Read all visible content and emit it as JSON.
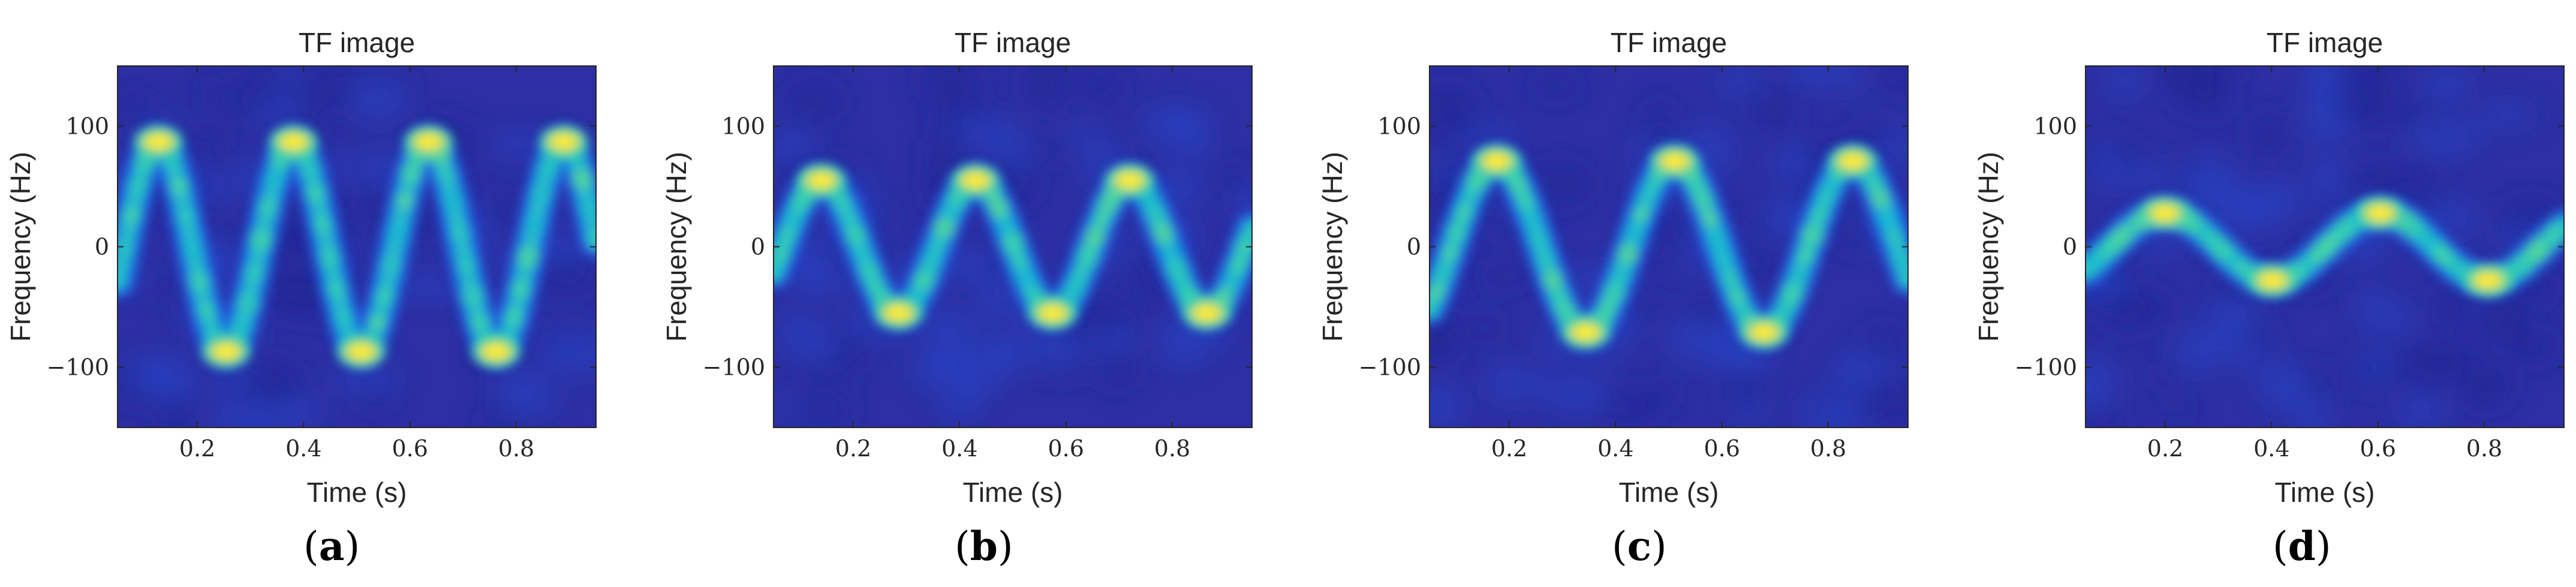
{
  "chart_data": [
    {
      "type": "heatmap",
      "title": "TF image",
      "xlabel": "Time (s)",
      "ylabel": "Frequency (Hz)",
      "xlim": [
        0.05,
        0.95
      ],
      "ylim": [
        -150,
        150
      ],
      "xticks": [
        0.2,
        0.4,
        0.6,
        0.8
      ],
      "xtick_labels": [
        "0.2",
        "0.4",
        "0.6",
        "0.8"
      ],
      "yticks": [
        100,
        0,
        -100
      ],
      "ytick_labels": [
        "100",
        "0",
        "−100"
      ],
      "ridge": {
        "amplitude_hz": 87,
        "period_s": 0.254,
        "phase_s": 0.0635
      },
      "caption_letter": "a"
    },
    {
      "type": "heatmap",
      "title": "TF image",
      "xlabel": "Time (s)",
      "ylabel": "Frequency (Hz)",
      "xlim": [
        0.05,
        0.95
      ],
      "ylim": [
        -150,
        150
      ],
      "xticks": [
        0.2,
        0.4,
        0.6,
        0.8
      ],
      "xtick_labels": [
        "0.2",
        "0.4",
        "0.6",
        "0.8"
      ],
      "yticks": [
        100,
        0,
        -100
      ],
      "ytick_labels": [
        "100",
        "0",
        "−100"
      ],
      "ridge": {
        "amplitude_hz": 55,
        "period_s": 0.29,
        "phase_s": 0.0675
      },
      "caption_letter": "b"
    },
    {
      "type": "heatmap",
      "title": "TF image",
      "xlabel": "Time (s)",
      "ylabel": "Frequency (Hz)",
      "xlim": [
        0.05,
        0.95
      ],
      "ylim": [
        -150,
        150
      ],
      "xticks": [
        0.2,
        0.4,
        0.6,
        0.8
      ],
      "xtick_labels": [
        "0.2",
        "0.4",
        "0.6",
        "0.8"
      ],
      "yticks": [
        100,
        0,
        -100
      ],
      "ytick_labels": [
        "100",
        "0",
        "−100"
      ],
      "ridge": {
        "amplitude_hz": 71,
        "period_s": 0.335,
        "phase_s": 0.0925
      },
      "caption_letter": "c"
    },
    {
      "type": "heatmap",
      "title": "TF image",
      "xlabel": "Time (s)",
      "ylabel": "Frequency (Hz)",
      "xlim": [
        0.05,
        0.95
      ],
      "ylim": [
        -150,
        150
      ],
      "xticks": [
        0.2,
        0.4,
        0.6,
        0.8
      ],
      "xtick_labels": [
        "0.2",
        "0.4",
        "0.6",
        "0.8"
      ],
      "yticks": [
        100,
        0,
        -100
      ],
      "ytick_labels": [
        "100",
        "0",
        "−100"
      ],
      "ridge": {
        "amplitude_hz": 28,
        "period_s": 0.405,
        "phase_s": 0.098
      },
      "caption_letter": "d"
    }
  ],
  "colors": {
    "background": "#2d2fa3",
    "colormap": [
      "#2a2ca6",
      "#1f6ef2",
      "#13b4d9",
      "#3fd6a8",
      "#a6e05a",
      "#f0dc22",
      "#fef928"
    ]
  }
}
